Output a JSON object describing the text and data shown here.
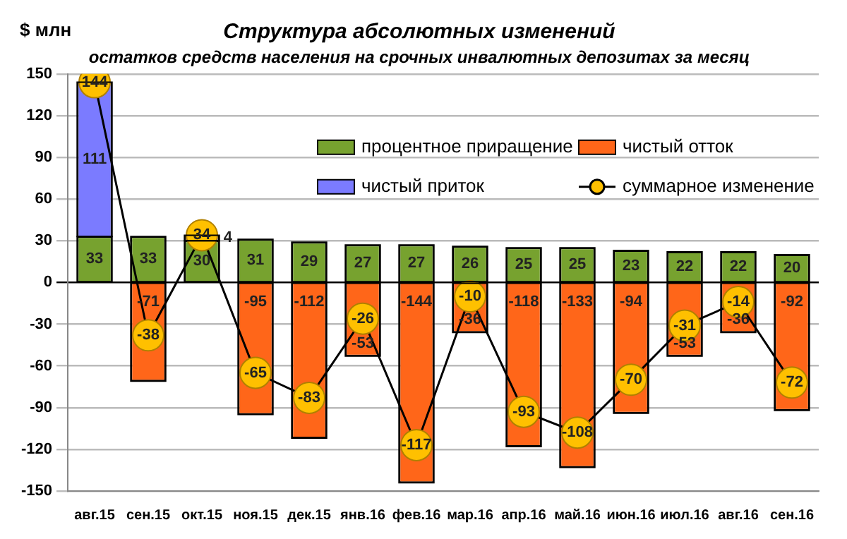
{
  "chart_data": {
    "type": "bar",
    "title": "Структура абсолютных изменений",
    "subtitle": "остатков средств населения на срочных инвалютных депозитах за месяц",
    "ylabel": "$ млн",
    "categories": [
      "авг.15",
      "сен.15",
      "окт.15",
      "ноя.15",
      "дек.15",
      "янв.16",
      "фев.16",
      "мар.16",
      "апр.16",
      "май.16",
      "июн.16",
      "июл.16",
      "авг.16",
      "сен.16"
    ],
    "stacked": true,
    "series": [
      {
        "name": "процентное приращение",
        "color": "#77a22f",
        "values": [
          33,
          33,
          30,
          31,
          29,
          27,
          27,
          26,
          25,
          25,
          23,
          22,
          22,
          20
        ]
      },
      {
        "name": "чистый отток",
        "color": "#ff6619",
        "values": [
          null,
          -71,
          null,
          -95,
          -112,
          -53,
          -144,
          -36,
          -118,
          -133,
          -94,
          -53,
          -36,
          -92
        ]
      },
      {
        "name": "чистый приток",
        "color": "#7b7bff",
        "values": [
          111,
          null,
          4,
          null,
          null,
          null,
          null,
          null,
          null,
          null,
          null,
          null,
          null,
          null
        ]
      },
      {
        "name": "суммарное изменение",
        "type": "line",
        "color": "#ffc000",
        "marker": "circle",
        "values": [
          144,
          -38,
          34,
          -65,
          -83,
          -26,
          -117,
          -10,
          -93,
          -108,
          -70,
          -31,
          -14,
          -72
        ]
      }
    ],
    "ylim": [
      -150,
      150
    ],
    "yticks": [
      -150,
      -120,
      -90,
      -60,
      -30,
      0,
      30,
      60,
      90,
      120,
      150
    ],
    "grid": "y",
    "legend": "top right",
    "data_labels": true
  }
}
